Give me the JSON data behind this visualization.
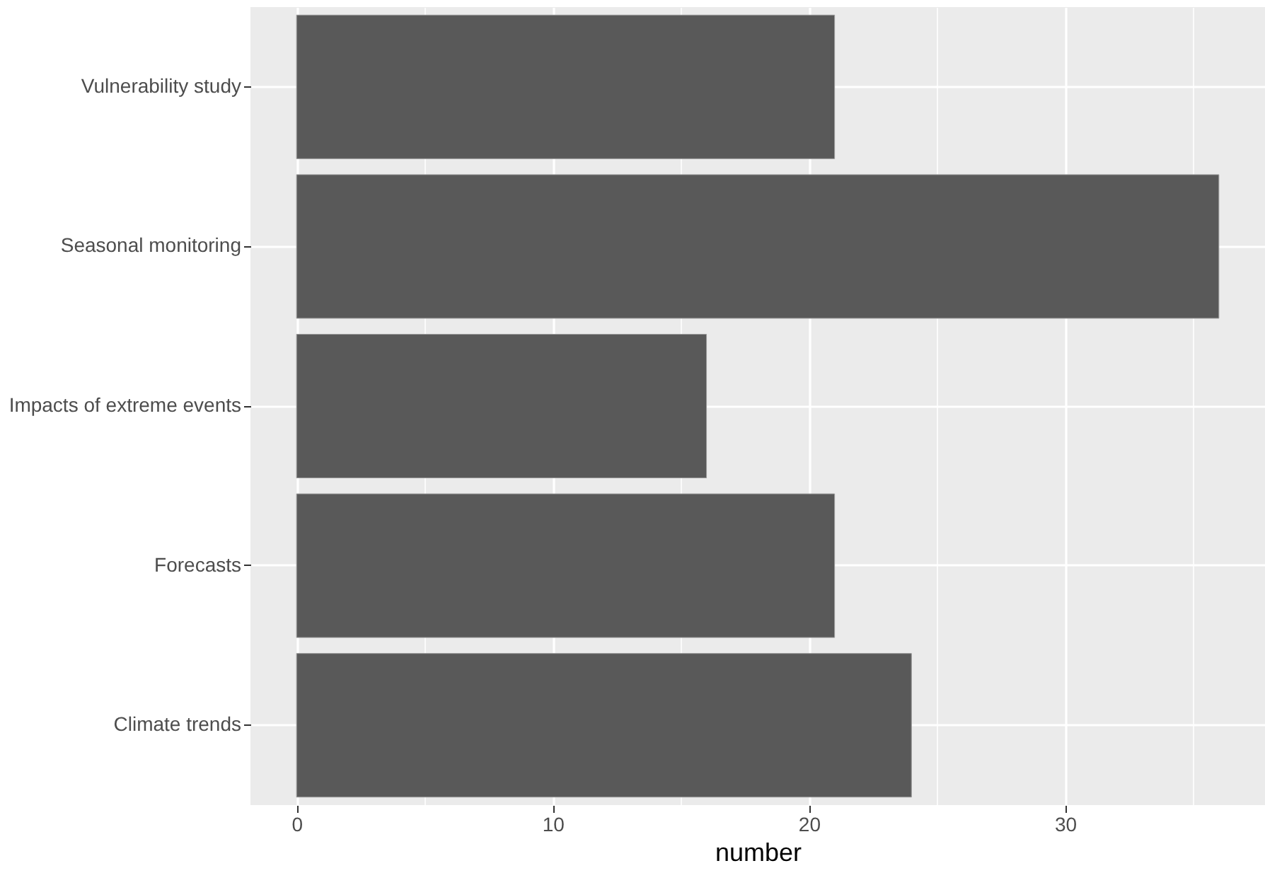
{
  "chart_data": {
    "type": "bar",
    "orientation": "horizontal",
    "xlabel": "number",
    "categories": [
      "Vulnerability study",
      "Seasonal monitoring",
      "Impacts of extreme events",
      "Forecasts",
      "Climate trends"
    ],
    "values": [
      21,
      36,
      16,
      21,
      24
    ],
    "color": "#595959",
    "xlim": [
      -1.8,
      37.8
    ],
    "xticks": [
      0,
      {
        "value": 5,
        "label": null
      },
      10,
      {
        "value": 15,
        "label": null
      },
      20,
      {
        "value": 25,
        "label": null
      },
      30,
      {
        "value": 35,
        "label": null
      }
    ],
    "grid": true
  }
}
